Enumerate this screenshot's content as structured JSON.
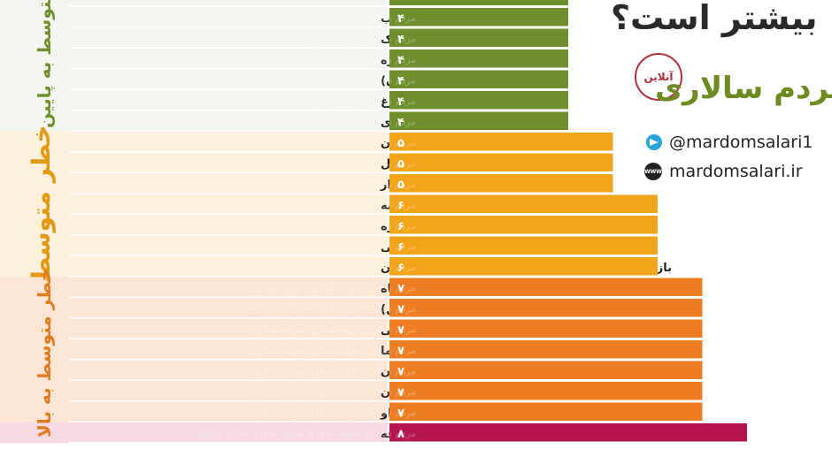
{
  "header": {
    "title": "بیشتر است؟",
    "logo": "مردم سالاری",
    "logo_badge": "آنلاین",
    "telegram": "@mardomsalari1",
    "website": "mardomsalari.ir"
  },
  "chart_data": {
    "type": "bar",
    "orientation": "horizontal",
    "title": "",
    "xlabel": "",
    "ylabel": "",
    "xlim": [
      0,
      9
    ],
    "categories": [
      "ماندن در هتل برای دو شب",
      "نشستن در اتاق انتظار پزشک",
      "رفتن به کتابخانه یا موزه",
      "خوردن غذا در رستوران (بیرون)",
      "پیاده‌روی در مرکزشهر شلوغ",
      "گذراندن یک ساعت در زمین بازی",
      "شام در خانه‌ی دیگری خوردن",
      "رفتن به ساحل",
      "خرید از بازار",
      "فرستادن کودکان به مدرسه",
      "یک هفته کار در اداره",
      "شنا در استخرهای همگانی",
      "بازدید از خویشاوندان سالمند یا دوستان در خانه‌شان",
      "رفتن به آرایشگاه",
      "خوردن غذا در رستوران (داخل)",
      "رفتن به عروسی",
      "سفر با هواپیما",
      "بسکتبال بازی کردن",
      "فوتبال بازی کردن",
      "بغل کردن یک دوست یا دست دادن با او",
      "خوردن غذا در بوفه"
    ],
    "values": [
      4,
      4,
      4,
      4,
      4,
      4,
      5,
      5,
      5,
      6,
      6,
      6,
      6,
      7,
      7,
      7,
      7,
      7,
      7,
      7,
      8
    ],
    "value_labels": [
      "۴",
      "۴",
      "۴",
      "۴",
      "۴",
      "۴",
      "۵",
      "۵",
      "۵",
      "۶",
      "۶",
      "۶",
      "۶",
      "۷",
      "۷",
      "۷",
      "۷",
      "۷",
      "۷",
      "۷",
      "۸"
    ],
    "groups": [
      {
        "name": "خطر متوسط به پایین",
        "from": 0,
        "to": 5,
        "bar_color": "#6f8f2e",
        "row_color": "#f3f6ee",
        "label_color": "#6f8f2e"
      },
      {
        "name": "خطر متوسط",
        "from": 6,
        "to": 12,
        "bar_color": "#f2a51a",
        "row_color": "#fdf0dc",
        "label_color": "#e39a12"
      },
      {
        "name": "خطر متوسط به بالا",
        "from": 13,
        "to": 19,
        "bar_color": "#ed7d22",
        "row_color": "#fde6d6",
        "label_color": "#e07b1f"
      },
      {
        "name": "",
        "from": 20,
        "to": 20,
        "bar_color": "#b4154f",
        "row_color": "#f6d9e2",
        "label_color": "#b4154f"
      }
    ],
    "watermark": "مردم سالاری"
  }
}
